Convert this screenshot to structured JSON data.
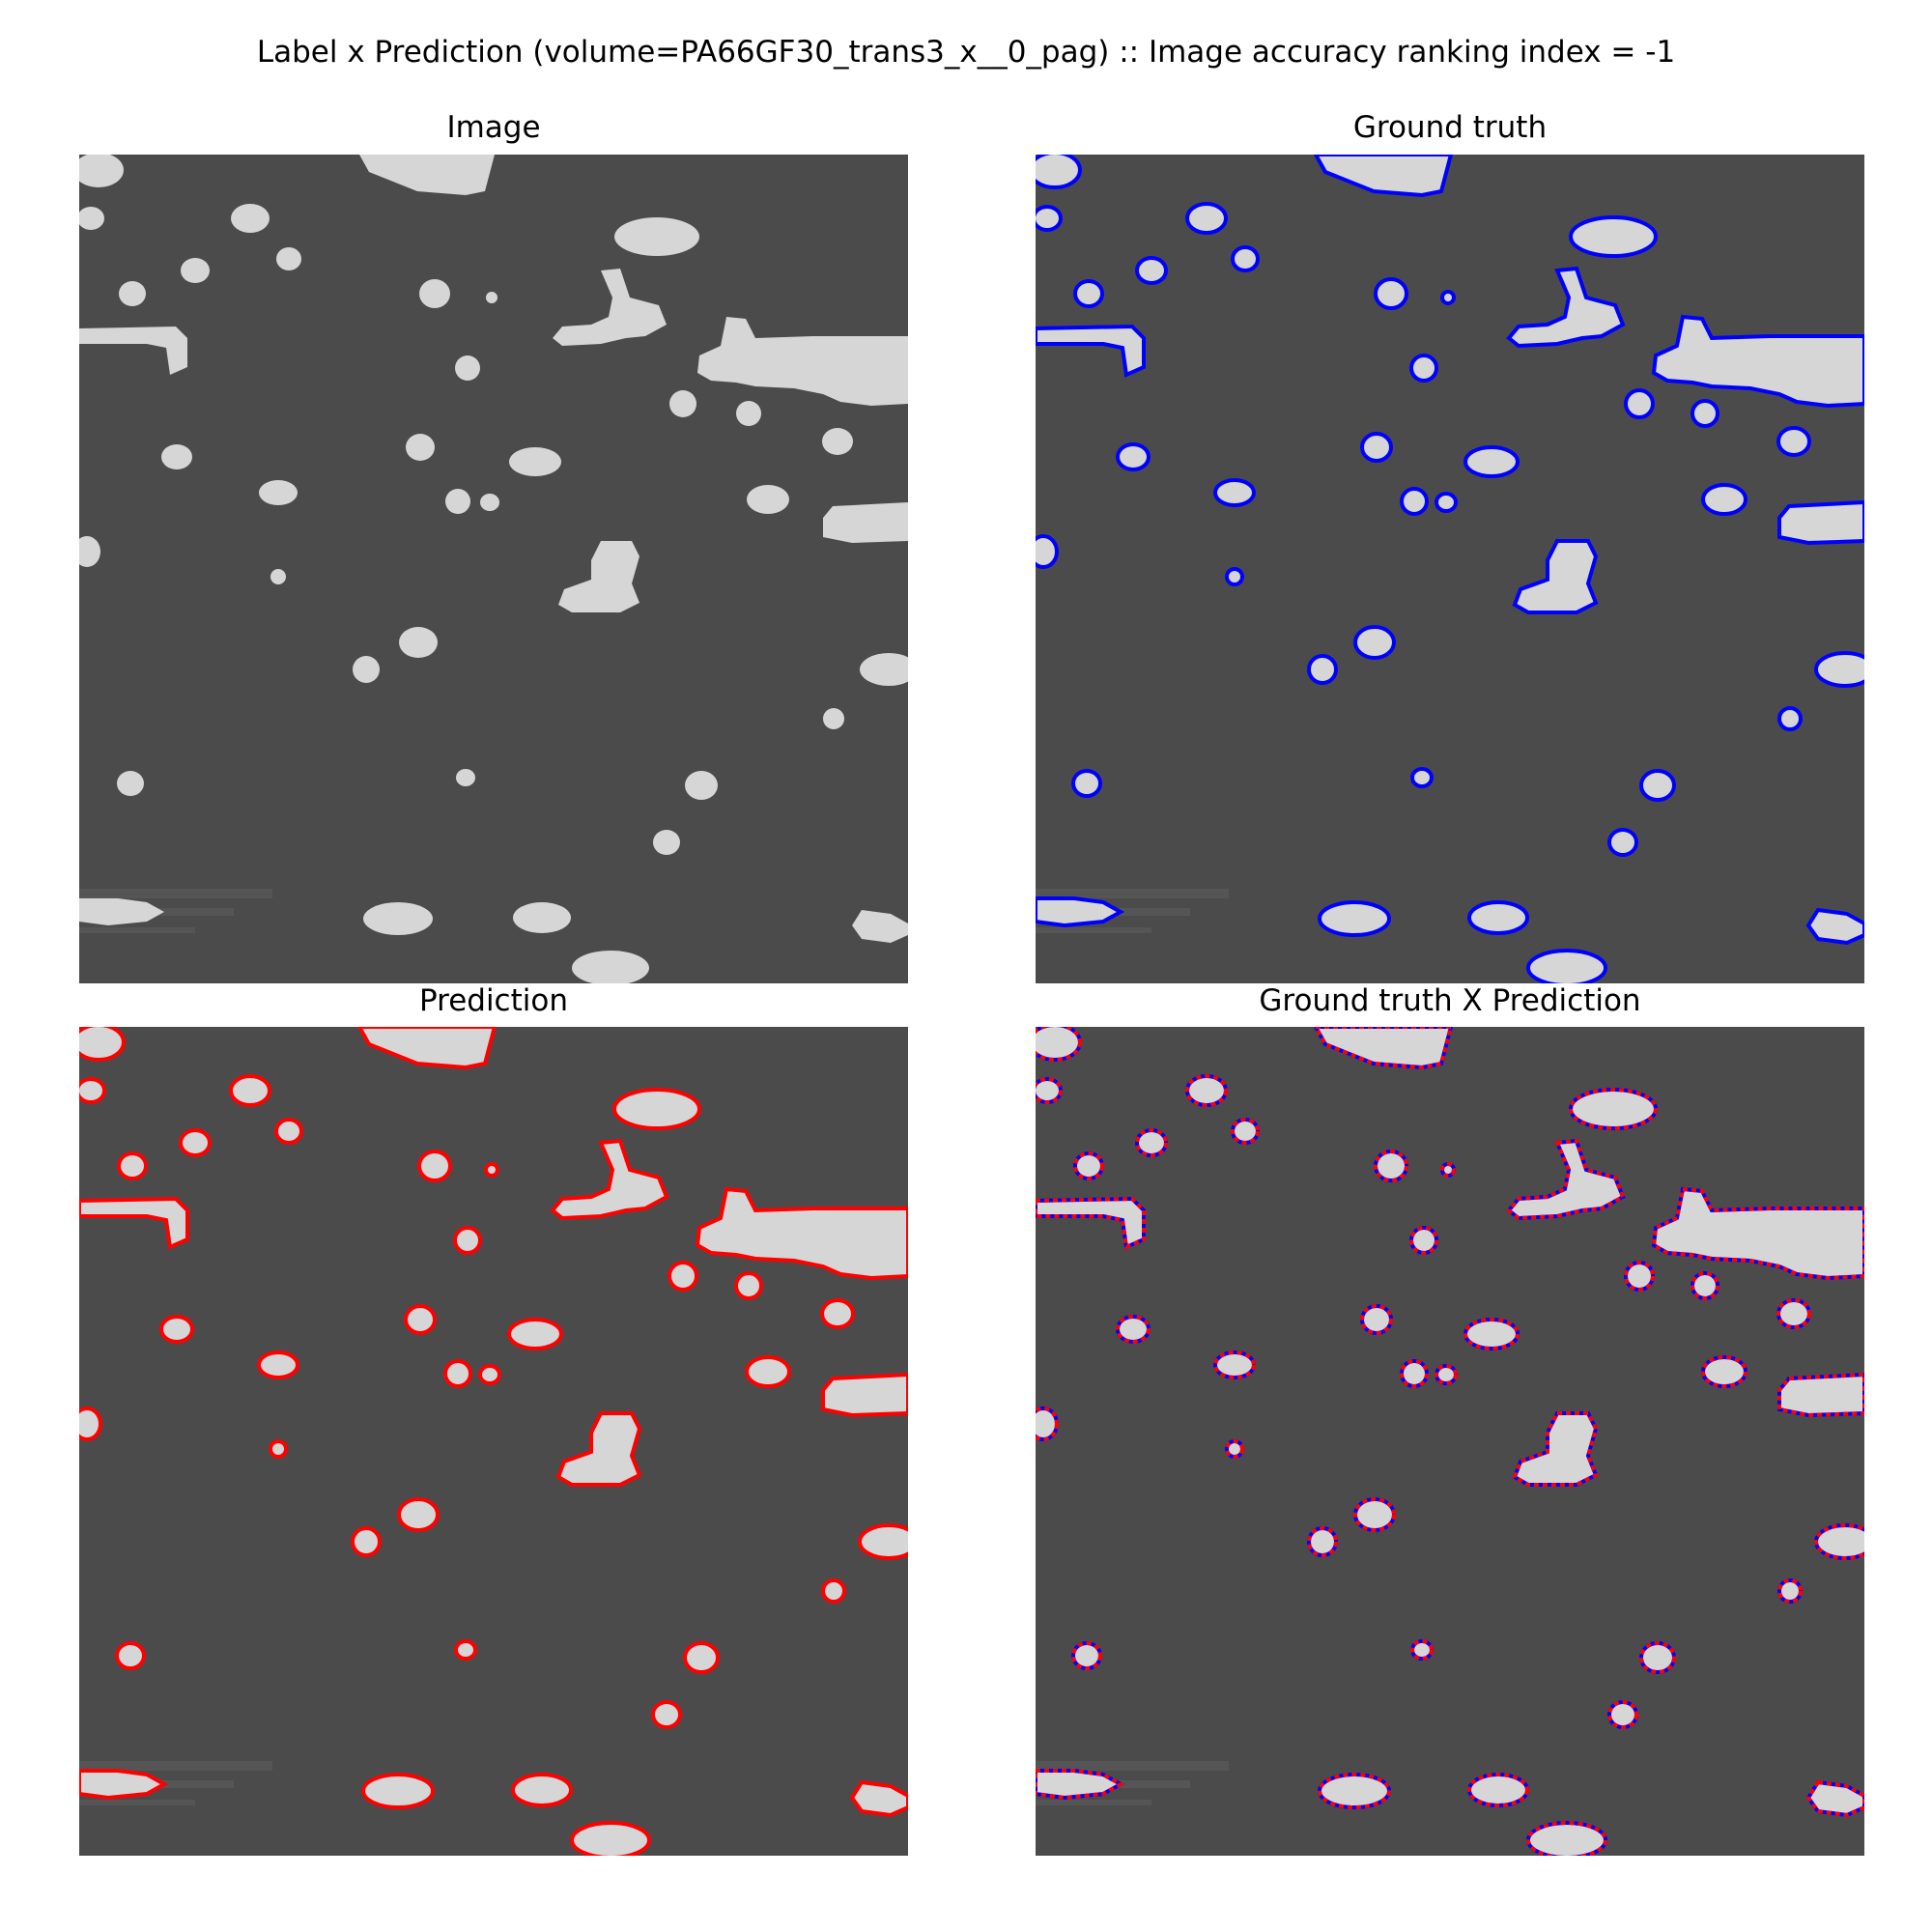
{
  "figure": {
    "suptitle": "Label x Prediction (volume=PA66GF30_trans3_x__0_pag) :: Image accuracy ranking index = -1"
  },
  "panels": [
    {
      "id": "image",
      "title": "Image",
      "contour": "none"
    },
    {
      "id": "ground-truth",
      "title": "Ground truth",
      "contour": "blue"
    },
    {
      "id": "prediction",
      "title": "Prediction",
      "contour": "red"
    },
    {
      "id": "overlay",
      "title": "Ground truth X Prediction",
      "contour": "both"
    }
  ],
  "colors": {
    "background": "#4b4b4b",
    "particle": "#d6d6d6",
    "ground_truth_contour": "#0000ff",
    "prediction_contour": "#ff0000"
  }
}
